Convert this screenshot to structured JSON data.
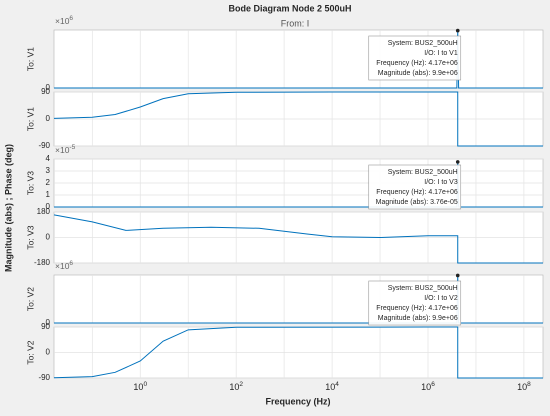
{
  "chart_data": {
    "type": "line",
    "title": "Bode Diagram Node 2 500uH",
    "subtitle": "From: I",
    "xlabel": "Frequency  (Hz)",
    "ylabel": "Magnitude (abs) ; Phase (deg)",
    "xscale": "log",
    "grid": true,
    "xlim": [
      0.0159,
      250000000
    ],
    "xticks": [
      {
        "value": 1,
        "label": "10",
        "exponent": "0"
      },
      {
        "value": 100,
        "label": "10",
        "exponent": "2"
      },
      {
        "value": 10000,
        "label": "10",
        "exponent": "4"
      },
      {
        "value": 1000000,
        "label": "10",
        "exponent": "6"
      },
      {
        "value": 100000000,
        "label": "10",
        "exponent": "8"
      }
    ],
    "xminor": [
      0.1,
      10,
      1000,
      100000,
      10000000
    ],
    "panels": [
      {
        "ylabel": "To: V1",
        "multiplier": {
          "label": "×10",
          "exponent": "6"
        },
        "ylim": [
          0,
          10000000
        ],
        "yticks": [
          0
        ],
        "color": "#0072bd",
        "x": [
          0.0159,
          1,
          100,
          10000,
          1000000,
          4000000,
          4170000,
          4350000,
          10000000,
          250000000
        ],
        "values": [
          0,
          0,
          0,
          0,
          0,
          0,
          9900000,
          0,
          0,
          0
        ],
        "datatip": [
          "System: BUS2_500uH",
          "I/O: I to V1",
          "Frequency (Hz): 4.17e+06",
          "Magnitude (abs): 9.9e+06"
        ]
      },
      {
        "ylabel": "To: V1",
        "ylim": [
          -90,
          90
        ],
        "yticks": [
          -90,
          0,
          90
        ],
        "color": "#0072bd",
        "x": [
          0.0159,
          0.1,
          0.3,
          1,
          3,
          10,
          100,
          10000,
          1000000,
          4170000,
          4170000,
          10000000,
          250000000
        ],
        "values": [
          2,
          6,
          15,
          40,
          68,
          84,
          89,
          90,
          90,
          90,
          -90,
          -90,
          -90
        ]
      },
      {
        "ylabel": "To: V3",
        "multiplier": {
          "label": "×10",
          "exponent": "-5"
        },
        "ylim": [
          0,
          4e-05
        ],
        "yticks": [
          0,
          {
            "value": 1e-05,
            "label": "1"
          },
          {
            "value": 2e-05,
            "label": "2"
          },
          {
            "value": 3e-05,
            "label": "3"
          },
          {
            "value": 4e-05,
            "label": "4"
          }
        ],
        "color": "#0072bd",
        "x": [
          0.0159,
          1,
          100,
          10000,
          1000000,
          4000000,
          4170000,
          4350000,
          10000000,
          250000000
        ],
        "values": [
          0,
          0,
          0,
          0,
          0,
          0,
          3.76e-05,
          0,
          0,
          0
        ],
        "datatip": [
          "System: BUS2_500uH",
          "I/O: I to V3",
          "Frequency (Hz): 4.17e+06",
          "Magnitude (abs): 3.76e-05"
        ]
      },
      {
        "ylabel": "To: V3",
        "ylim": [
          -180,
          180
        ],
        "yticks": [
          -180,
          0,
          180
        ],
        "color": "#0072bd",
        "x": [
          0.0159,
          0.1,
          0.5,
          3,
          30,
          300,
          3000,
          10000,
          100000,
          1000000,
          4170000,
          4170000,
          10000000,
          250000000
        ],
        "values": [
          160,
          110,
          50,
          65,
          72,
          65,
          25,
          5,
          0,
          12,
          12,
          -180,
          -180,
          -180
        ]
      },
      {
        "ylabel": "To: V2",
        "multiplier": {
          "label": "×10",
          "exponent": "6"
        },
        "ylim": [
          0,
          10000000
        ],
        "yticks": [
          0
        ],
        "color": "#0072bd",
        "x": [
          0.0159,
          1,
          100,
          10000,
          1000000,
          4000000,
          4170000,
          4350000,
          10000000,
          250000000
        ],
        "values": [
          0,
          0,
          0,
          0,
          0,
          0,
          9900000,
          0,
          0,
          0
        ],
        "datatip": [
          "System: BUS2_500uH",
          "I/O: I to V2",
          "Frequency (Hz): 4.17e+06",
          "Magnitude (abs): 9.9e+06"
        ]
      },
      {
        "ylabel": "To: V2",
        "ylim": [
          -90,
          90
        ],
        "yticks": [
          -90,
          0,
          90
        ],
        "color": "#0072bd",
        "x": [
          0.0159,
          0.1,
          0.3,
          1,
          3,
          10,
          100,
          1000000,
          4170000,
          4170000,
          10000000,
          250000000
        ],
        "values": [
          -89,
          -85,
          -70,
          -30,
          40,
          80,
          89,
          90,
          90,
          -90,
          -90,
          -90
        ]
      }
    ]
  }
}
